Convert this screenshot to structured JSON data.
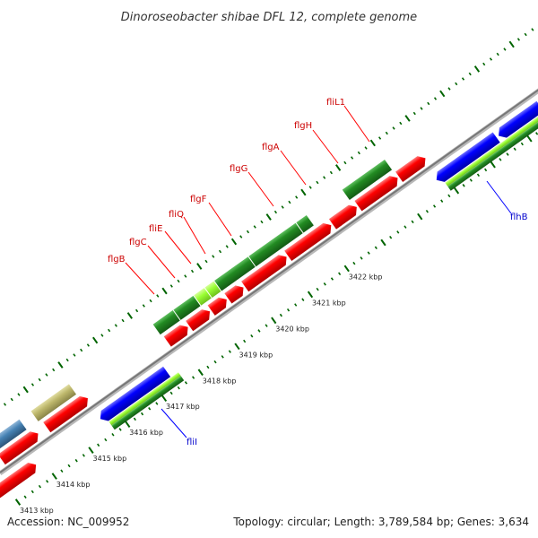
{
  "title": "Dinoroseobacter shibae DFL 12, complete genome",
  "footer": {
    "accession": "Accession: NC_009952",
    "topology": "Topology: circular; Length: 3,789,584 bp; Genes: 3,634"
  },
  "colors": {
    "backbone": "#8c8c8c",
    "forward_cds": "#ff0000",
    "reverse_cds": "#0000ff",
    "gene_green": "#228b22",
    "gene_lightgreen": "#99ff33",
    "gene_khaki": "#bdb76b",
    "gene_steelblue": "#4682b4",
    "label_forward": "#cc0000",
    "label_reverse": "#0000cc",
    "ruler": "#006400"
  },
  "ruler": {
    "unit": "kbp",
    "ticks": [
      "3413 kbp",
      "3414 kbp",
      "3415 kbp",
      "3416 kbp",
      "3417 kbp",
      "3418 kbp",
      "3419 kbp",
      "3420 kbp",
      "3421 kbp",
      "3422 kbp"
    ]
  },
  "gene_labels": [
    {
      "name": "flgB",
      "strand": "forward"
    },
    {
      "name": "flgC",
      "strand": "forward"
    },
    {
      "name": "fliE",
      "strand": "forward"
    },
    {
      "name": "fliQ",
      "strand": "forward"
    },
    {
      "name": "flgF",
      "strand": "forward"
    },
    {
      "name": "flgG",
      "strand": "forward"
    },
    {
      "name": "flgA",
      "strand": "forward"
    },
    {
      "name": "flgH",
      "strand": "forward"
    },
    {
      "name": "fliL1",
      "strand": "forward"
    },
    {
      "name": "flhB",
      "strand": "reverse"
    },
    {
      "name": "fliI",
      "strand": "reverse"
    }
  ]
}
